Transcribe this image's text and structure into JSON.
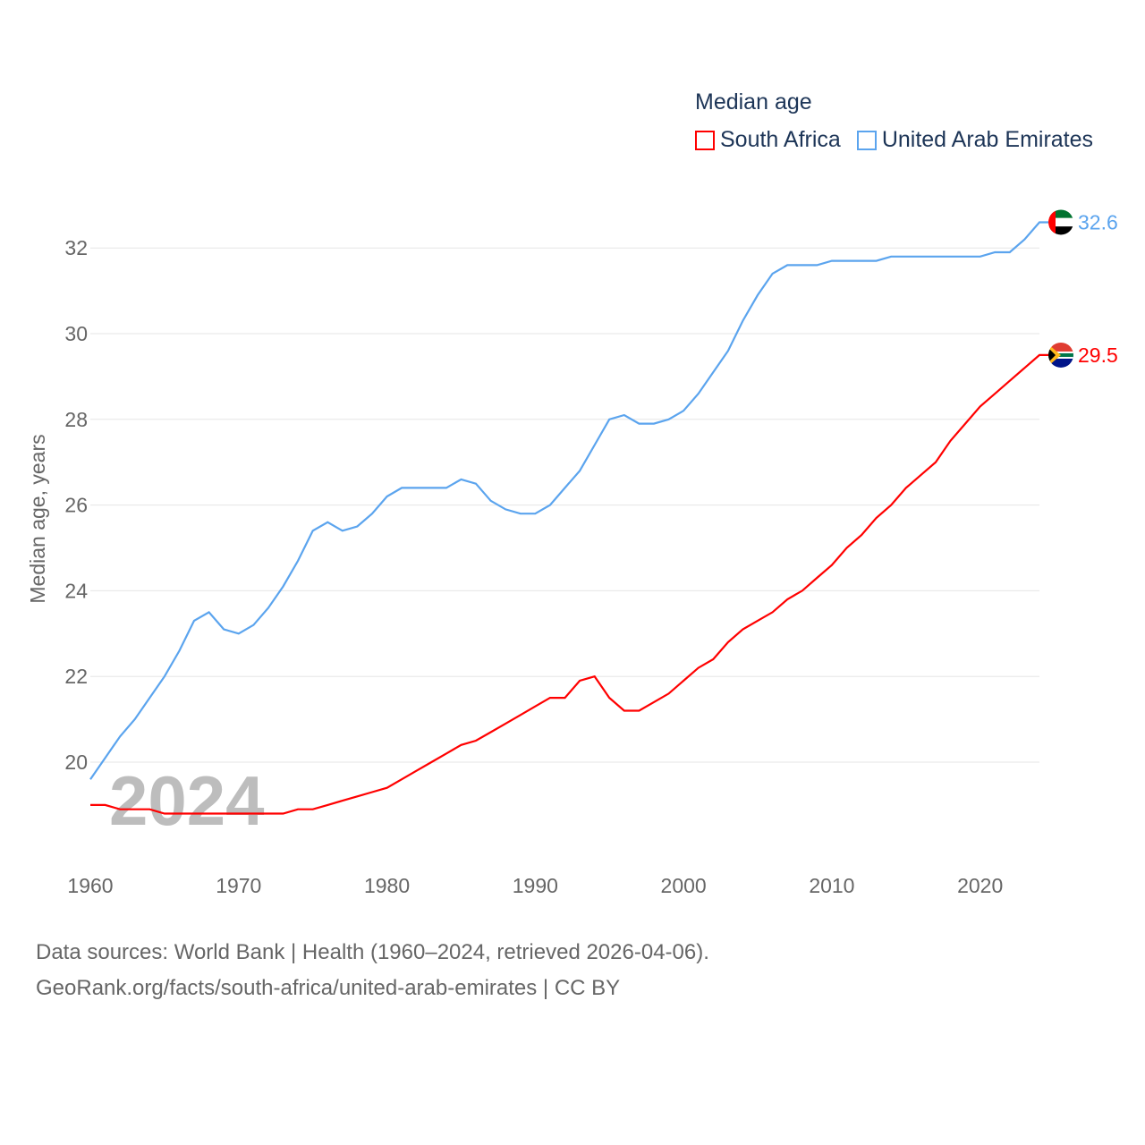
{
  "chart_data": {
    "type": "line",
    "legend_title": "Median age",
    "ylabel": "Median age, years",
    "xlabel": "",
    "ylim": [
      18.2,
      32.6
    ],
    "xlim": [
      1960,
      2024
    ],
    "grid": true,
    "legend_placement": "top-right",
    "watermark_year": "2024",
    "yticks": [
      "20",
      "22",
      "24",
      "26",
      "28",
      "30",
      "32"
    ],
    "xticks": [
      "1960",
      "1970",
      "1980",
      "1990",
      "2000",
      "2010",
      "2020"
    ],
    "x": [
      1960,
      1961,
      1962,
      1963,
      1964,
      1965,
      1966,
      1967,
      1968,
      1969,
      1970,
      1971,
      1972,
      1973,
      1974,
      1975,
      1976,
      1977,
      1978,
      1979,
      1980,
      1981,
      1982,
      1983,
      1984,
      1985,
      1986,
      1987,
      1988,
      1989,
      1990,
      1991,
      1992,
      1993,
      1994,
      1995,
      1996,
      1997,
      1998,
      1999,
      2000,
      2001,
      2002,
      2003,
      2004,
      2005,
      2006,
      2007,
      2008,
      2009,
      2010,
      2011,
      2012,
      2013,
      2014,
      2015,
      2016,
      2017,
      2018,
      2019,
      2020,
      2021,
      2022,
      2023,
      2024
    ],
    "series": [
      {
        "name": "South Africa",
        "color": "#ff0000",
        "end_label": "29.5",
        "values": [
          19.0,
          19.0,
          18.9,
          18.9,
          18.9,
          18.8,
          18.8,
          18.8,
          18.8,
          18.8,
          18.8,
          18.8,
          18.8,
          18.8,
          18.9,
          18.9,
          19.0,
          19.1,
          19.2,
          19.3,
          19.4,
          19.6,
          19.8,
          20.0,
          20.2,
          20.4,
          20.5,
          20.7,
          20.9,
          21.1,
          21.3,
          21.5,
          21.5,
          21.9,
          22.0,
          21.5,
          21.2,
          21.2,
          21.4,
          21.6,
          21.9,
          22.2,
          22.4,
          22.8,
          23.1,
          23.3,
          23.5,
          23.8,
          24.0,
          24.3,
          24.6,
          25.0,
          25.3,
          25.7,
          26.0,
          26.4,
          26.7,
          27.0,
          27.5,
          27.9,
          28.3,
          28.6,
          28.9,
          29.2,
          29.5
        ]
      },
      {
        "name": "United Arab Emirates",
        "color": "#5ba4ee",
        "end_label": "32.6",
        "values": [
          19.6,
          20.1,
          20.6,
          21.0,
          21.5,
          22.0,
          22.6,
          23.3,
          23.5,
          23.1,
          23.0,
          23.2,
          23.6,
          24.1,
          24.7,
          25.4,
          25.6,
          25.4,
          25.5,
          25.8,
          26.2,
          26.4,
          26.4,
          26.4,
          26.4,
          26.6,
          26.5,
          26.1,
          25.9,
          25.8,
          25.8,
          26.0,
          26.4,
          26.8,
          27.4,
          28.0,
          28.1,
          27.9,
          27.9,
          28.0,
          28.2,
          28.6,
          29.1,
          29.6,
          30.3,
          30.9,
          31.4,
          31.6,
          31.6,
          31.6,
          31.7,
          31.7,
          31.7,
          31.7,
          31.8,
          31.8,
          31.8,
          31.8,
          31.8,
          31.8,
          31.8,
          31.9,
          31.9,
          32.2,
          32.6
        ]
      }
    ]
  },
  "source": {
    "line1": "Data sources: World Bank | Health (1960–2024, retrieved 2026-04-06).",
    "line2": "GeoRank.org/facts/south-africa/united-arab-emirates | CC BY"
  }
}
